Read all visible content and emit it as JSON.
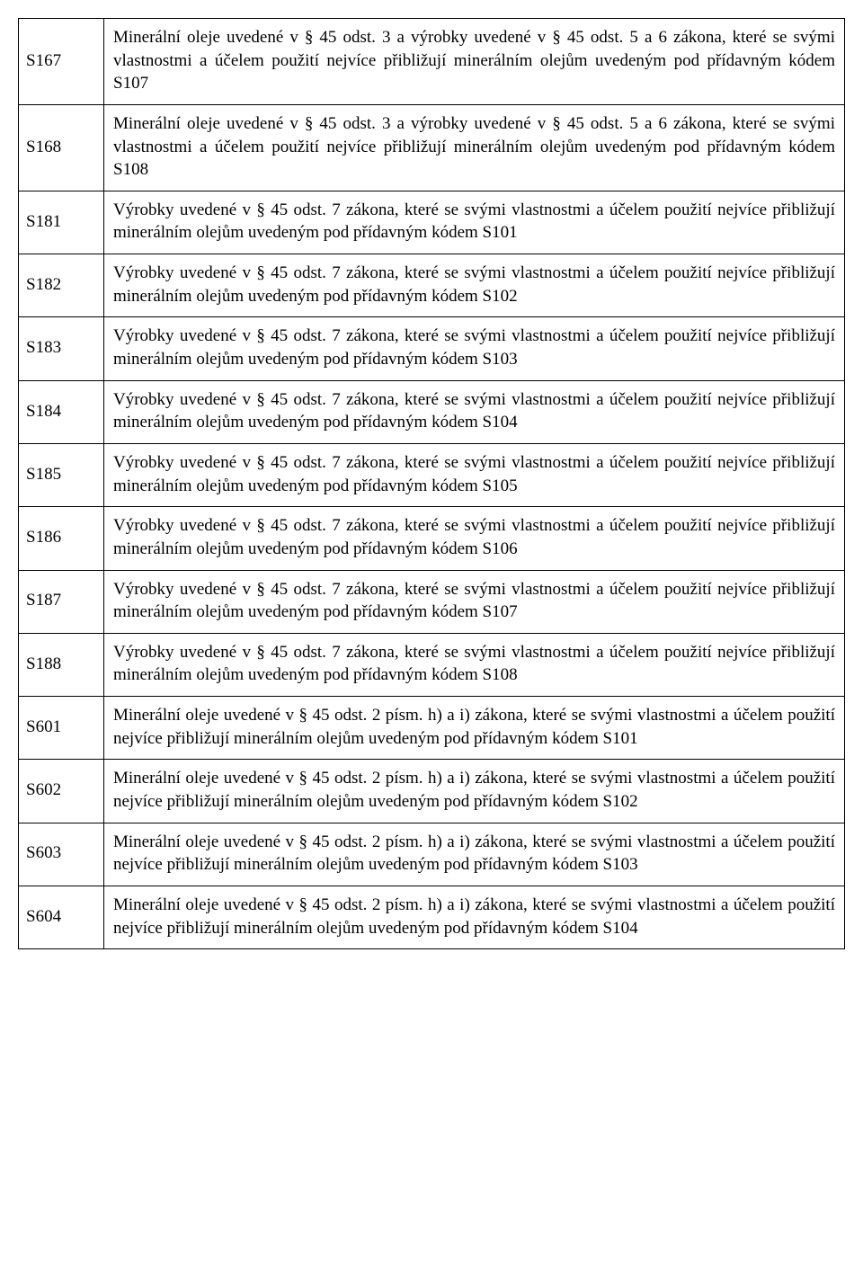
{
  "rows": [
    {
      "code": "S167",
      "desc": "Minerální oleje uvedené v § 45 odst. 3 a výrobky uvedené v § 45 odst. 5 a 6 zákona, které se svými vlastnostmi a účelem použití nejvíce přibližují minerálním olejům uvedeným pod přídavným kódem S107"
    },
    {
      "code": "S168",
      "desc": "Minerální oleje uvedené v § 45 odst. 3 a výrobky uvedené v § 45 odst. 5 a 6 zákona, které se svými vlastnostmi a účelem použití nejvíce přibližují minerálním olejům uvedeným pod přídavným kódem S108"
    },
    {
      "code": "S181",
      "desc": "Výrobky uvedené v § 45 odst. 7 zákona, které se svými vlastnostmi a účelem použití nejvíce přibližují minerálním olejům uvedeným pod přídavným kódem S101"
    },
    {
      "code": "S182",
      "desc": "Výrobky uvedené v § 45 odst. 7 zákona, které se svými vlastnostmi a účelem použití nejvíce přibližují minerálním olejům uvedeným pod přídavným kódem S102"
    },
    {
      "code": "S183",
      "desc": "Výrobky uvedené v § 45 odst. 7 zákona, které se svými vlastnostmi a účelem použití nejvíce přibližují minerálním olejům uvedeným pod přídavným kódem S103"
    },
    {
      "code": "S184",
      "desc": "Výrobky uvedené v § 45 odst. 7 zákona, které se svými vlastnostmi a účelem použití nejvíce přibližují minerálním olejům uvedeným pod přídavným kódem S104"
    },
    {
      "code": "S185",
      "desc": "Výrobky uvedené v § 45 odst. 7 zákona, které se svými vlastnostmi a účelem použití nejvíce přibližují minerálním olejům uvedeným pod přídavným kódem S105"
    },
    {
      "code": "S186",
      "desc": "Výrobky uvedené v § 45 odst. 7 zákona, které se svými vlastnostmi a účelem použití nejvíce přibližují minerálním olejům uvedeným pod přídavným kódem S106"
    },
    {
      "code": "S187",
      "desc": "Výrobky uvedené v § 45 odst. 7 zákona, které se svými vlastnostmi a účelem použití nejvíce přibližují minerálním olejům uvedeným pod přídavným kódem S107"
    },
    {
      "code": "S188",
      "desc": "Výrobky uvedené v § 45 odst. 7 zákona, které se svými vlastnostmi a účelem použití nejvíce přibližují minerálním olejům uvedeným pod přídavným kódem S108"
    },
    {
      "code": "S601",
      "desc": "Minerální oleje uvedené v § 45 odst. 2 písm. h) a i) zákona, které se svými vlastnostmi a účelem použití nejvíce přibližují minerálním olejům uvedeným pod přídavným kódem S101"
    },
    {
      "code": "S602",
      "desc": "Minerální oleje uvedené v § 45 odst. 2 písm. h) a i) zákona, které se svými vlastnostmi a účelem použití nejvíce přibližují minerálním olejům uvedeným pod přídavným kódem S102"
    },
    {
      "code": "S603",
      "desc": "Minerální oleje uvedené v § 45 odst. 2 písm. h) a i) zákona, které se svými vlastnostmi a účelem použití nejvíce přibližují minerálním olejům uvedeným pod přídavným kódem S103"
    },
    {
      "code": "S604",
      "desc": "Minerální oleje uvedené v § 45 odst. 2 písm. h) a i) zákona, které se svými vlastnostmi a účelem použití nejvíce přibližují minerálním olejům uvedeným pod přídavným kódem S104"
    }
  ]
}
